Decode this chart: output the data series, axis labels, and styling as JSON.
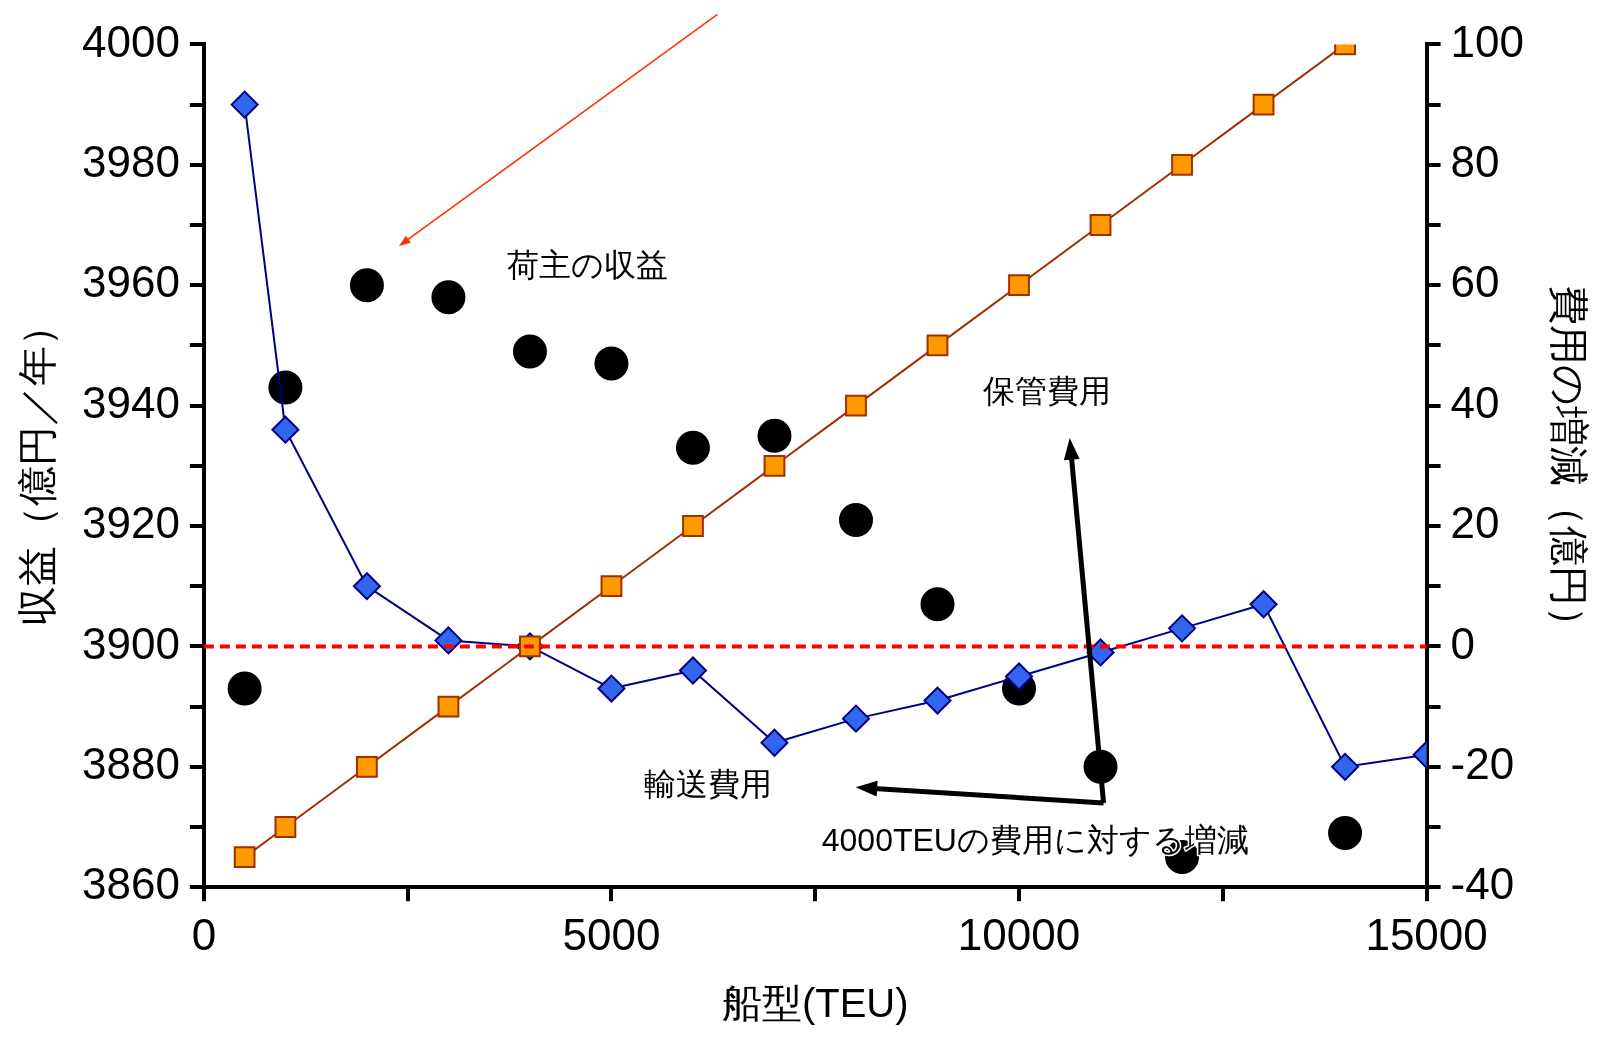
{
  "chart_data": {
    "type": "scatter",
    "xlabel": "船型(TEU)",
    "ylabel": "収益（億円／年）",
    "y2label": "費用の増減（億円）",
    "xlim": [
      0,
      15000
    ],
    "xticks": [
      0,
      {
        "value": 2500,
        "label": null
      },
      5000,
      {
        "value": 7500,
        "label": null
      },
      10000,
      {
        "value": 12500,
        "label": null
      },
      15000
    ],
    "ylim": [
      3860,
      4000
    ],
    "yticks": [
      3860,
      {
        "value": 3870,
        "label": null
      },
      3880,
      {
        "value": 3890,
        "label": null
      },
      3900,
      {
        "value": 3910,
        "label": null
      },
      3920,
      {
        "value": 3930,
        "label": null
      },
      3940,
      {
        "value": 3950,
        "label": null
      },
      3960,
      {
        "value": 3970,
        "label": null
      },
      3980,
      {
        "value": 3990,
        "label": null
      },
      4000
    ],
    "y2lim": [
      -40,
      100
    ],
    "y2ticks": [
      -40,
      {
        "value": -30,
        "label": null
      },
      -20,
      {
        "value": -10,
        "label": null
      },
      0,
      {
        "value": 10,
        "label": null
      },
      20,
      {
        "value": 30,
        "label": null
      },
      40,
      {
        "value": 50,
        "label": null
      },
      60,
      {
        "value": 70,
        "label": null
      },
      80,
      {
        "value": 90,
        "label": null
      },
      100
    ],
    "grid": false,
    "legend": false,
    "series": [
      {
        "type": "scatter",
        "color": "#000000",
        "marker": "circle",
        "x": [
          500,
          1000,
          2000,
          3000,
          4000,
          5000,
          6000,
          7000,
          8000,
          9000,
          10000,
          11000,
          12000,
          14000
        ],
        "values": [
          3893,
          3943,
          3960,
          3958,
          3949,
          3947,
          3933,
          3935,
          3921,
          3907,
          3893,
          3880,
          3865,
          3869
        ]
      },
      {
        "type": "line",
        "axis": "y2",
        "color": "#3366ee",
        "marker": "diamond",
        "x": [
          500,
          1000,
          2000,
          3000,
          4000,
          5000,
          6000,
          7000,
          8000,
          9000,
          10000,
          11000,
          12000,
          13000,
          14000,
          15000
        ],
        "values": [
          90,
          36,
          10,
          1,
          0,
          -7,
          -4,
          -16,
          -12,
          -9,
          -5,
          -1,
          3,
          7,
          -20,
          -18
        ]
      },
      {
        "type": "line",
        "axis": "y2",
        "color": "#ff9900",
        "marker": "square",
        "x": [
          500,
          1000,
          2000,
          3000,
          4000,
          5000,
          6000,
          7000,
          8000,
          9000,
          10000,
          11000,
          12000,
          13000,
          14000
        ],
        "values": [
          -35,
          -30,
          -20,
          -10,
          0,
          10,
          20,
          30,
          40,
          50,
          60,
          70,
          80,
          90,
          100
        ]
      }
    ],
    "ref_lines": [
      {
        "axis": "y2",
        "value": 0,
        "color": "#ff0000",
        "line_style": "dashed"
      }
    ],
    "annotations": [
      "荷主の収益",
      "保管費用",
      "輸送費用",
      "4000TEUの費用に対する増減"
    ]
  }
}
